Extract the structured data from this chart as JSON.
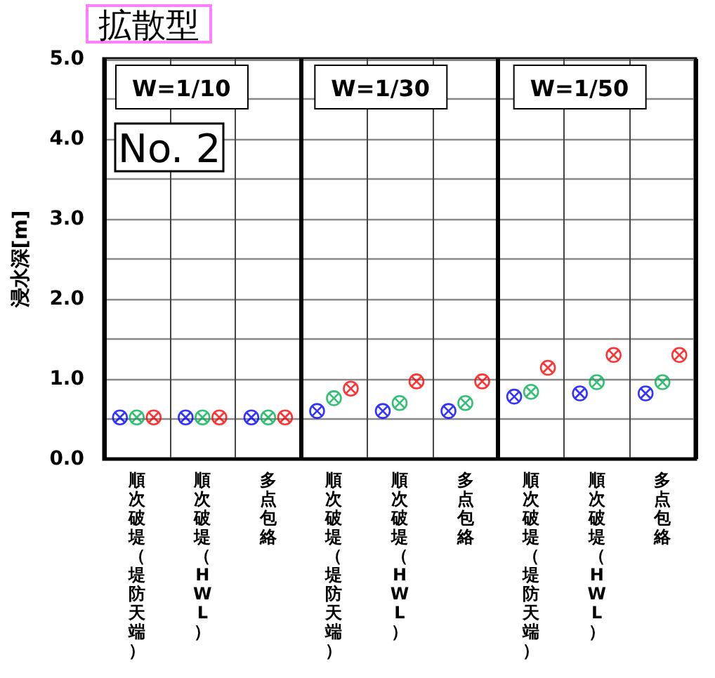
{
  "chart_data": {
    "type": "scatter",
    "title": "拡散型",
    "ylabel": "浸水深[m]",
    "annotations": [
      "W=1/10",
      "W=1/30",
      "W=1/50",
      "No. 2"
    ],
    "categories": [
      "順次破堤（堤防天端）",
      "順次破堤（HWL）",
      "多点包絡",
      "順次破堤（堤防天端）",
      "順次破堤（HWL）",
      "多点包絡",
      "順次破堤（堤防天端）",
      "順次破堤（HWL）",
      "多点包絡"
    ],
    "series": [
      {
        "color": "#0000ff",
        "values": [
          0.52,
          0.52,
          0.52,
          0.6,
          0.6,
          0.6,
          0.78,
          0.82,
          0.82
        ]
      },
      {
        "color": "#00b050",
        "values": [
          0.52,
          0.52,
          0.52,
          0.76,
          0.7,
          0.7,
          0.84,
          0.96,
          0.96
        ]
      },
      {
        "color": "#ff0000",
        "values": [
          0.52,
          0.52,
          0.52,
          0.88,
          0.97,
          0.97,
          1.14,
          1.3,
          1.3
        ]
      }
    ],
    "ylim": [
      0,
      5
    ],
    "yticks": [
      {
        "value": 0,
        "label": "0.0"
      },
      {
        "value": 0.5,
        "label": null
      },
      {
        "value": 1,
        "label": "1.0"
      },
      {
        "value": 1.5,
        "label": null
      },
      {
        "value": 2,
        "label": "2.0"
      },
      {
        "value": 2.5,
        "label": null
      },
      {
        "value": 3,
        "label": "3.0"
      },
      {
        "value": 3.5,
        "label": null
      },
      {
        "value": 4,
        "label": "4.0"
      },
      {
        "value": 4.5,
        "label": null
      },
      {
        "value": 5,
        "label": "5.0"
      }
    ],
    "grid": true,
    "marker": "cross"
  }
}
